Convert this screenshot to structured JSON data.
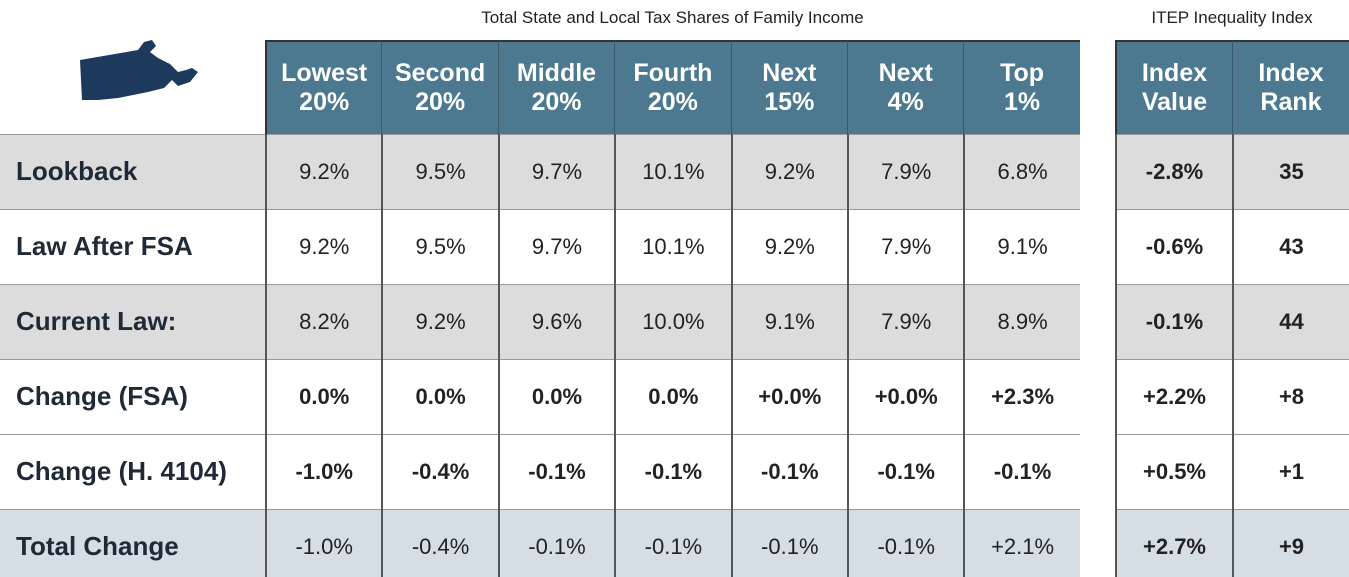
{
  "captions": {
    "shares": "Total State and Local Tax Shares of Family Income",
    "index": "ITEP Inequality Index"
  },
  "table": {
    "columns": [
      [
        "Lowest",
        "20%"
      ],
      [
        "Second",
        "20%"
      ],
      [
        "Middle",
        "20%"
      ],
      [
        "Fourth",
        "20%"
      ],
      [
        "Next",
        "15%"
      ],
      [
        "Next",
        "4%"
      ],
      [
        "Top",
        "1%"
      ],
      [
        "Index",
        "Value"
      ],
      [
        "Index",
        "Rank"
      ]
    ],
    "rows": [
      {
        "label": "Lookback",
        "cells": [
          "9.2%",
          "9.5%",
          "9.7%",
          "10.1%",
          "9.2%",
          "7.9%",
          "6.8%",
          "-2.8%",
          "35"
        ]
      },
      {
        "label": "Law After FSA",
        "cells": [
          "9.2%",
          "9.5%",
          "9.7%",
          "10.1%",
          "9.2%",
          "7.9%",
          "9.1%",
          "-0.6%",
          "43"
        ]
      },
      {
        "label": "Current Law:",
        "cells": [
          "8.2%",
          "9.2%",
          "9.6%",
          "10.0%",
          "9.1%",
          "7.9%",
          "8.9%",
          "-0.1%",
          "44"
        ]
      },
      {
        "label": "Change (FSA)",
        "cells": [
          "0.0%",
          "0.0%",
          "0.0%",
          "0.0%",
          "+0.0%",
          "+0.0%",
          "+2.3%",
          "+2.2%",
          "+8"
        ]
      },
      {
        "label": "Change (H. 4104)",
        "cells": [
          "-1.0%",
          "-0.4%",
          "-0.1%",
          "-0.1%",
          "-0.1%",
          "-0.1%",
          "-0.1%",
          "+0.5%",
          "+1"
        ]
      },
      {
        "label": "Total Change",
        "cells": [
          "-1.0%",
          "-0.4%",
          "-0.1%",
          "-0.1%",
          "-0.1%",
          "-0.1%",
          "+2.1%",
          "+2.7%",
          "+9"
        ]
      }
    ]
  }
}
